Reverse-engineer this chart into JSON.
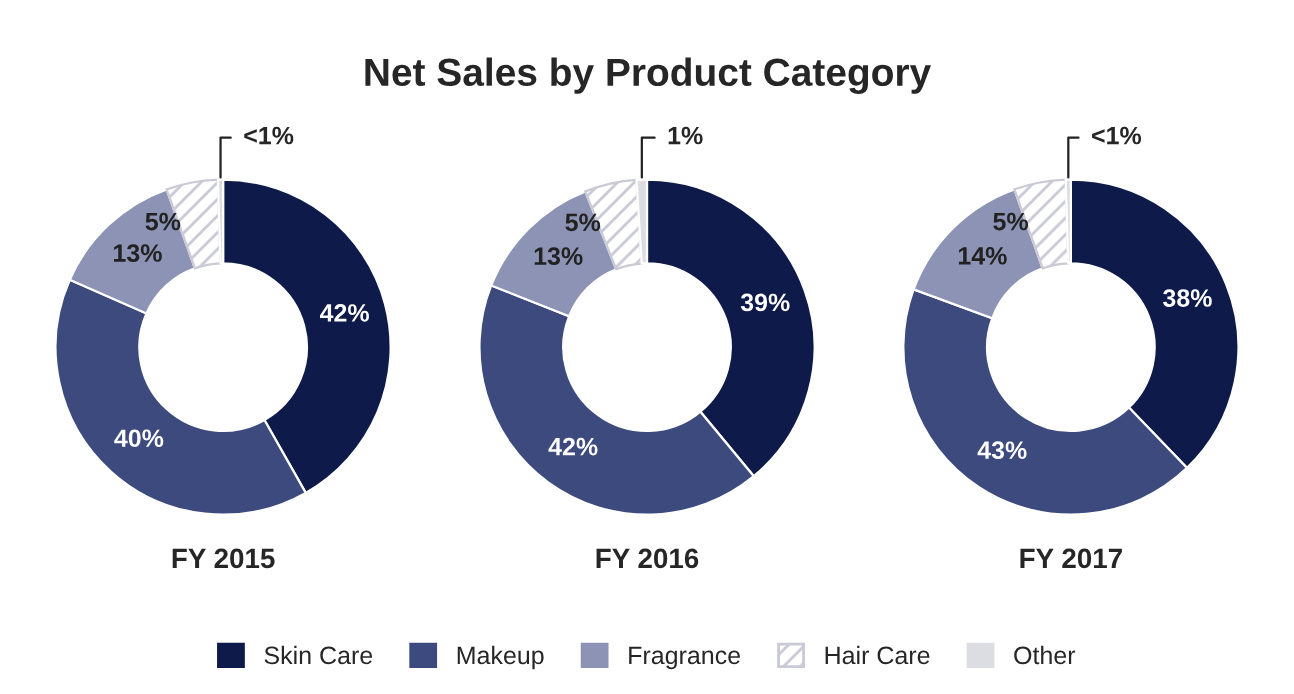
{
  "chart_data": [
    {
      "type": "donut",
      "xlabel": "FY 2015",
      "categories": [
        null,
        null,
        null,
        null,
        null
      ],
      "values": [
        42,
        40,
        13,
        5,
        0.5
      ],
      "value_labels": [
        "42%",
        "40%",
        "13%",
        "5%",
        "<1%"
      ],
      "colors": [
        "#0d1a4a",
        "#3d4a7e",
        "#8c93b4",
        "#c9cad6",
        "#dcdde3"
      ]
    },
    {
      "type": "donut",
      "title": "Net Sales by Product Category",
      "xlabel": "FY 2016",
      "legend": "bottom",
      "categories": [
        "Skin Care",
        "Makeup",
        "Fragrance",
        "Hair Care",
        "Other"
      ],
      "values": [
        39,
        42,
        13,
        5,
        1
      ],
      "value_labels": [
        "39%",
        "42%",
        "13%",
        "5%",
        "1%"
      ],
      "colors": [
        "#0d1a4a",
        "#3d4a7e",
        "#8c93b4",
        "#c9cad6",
        "#dcdde3"
      ]
    },
    {
      "type": "donut",
      "xlabel": "FY 2017",
      "categories": [
        null,
        null,
        null,
        null,
        null
      ],
      "values": [
        38,
        43,
        14,
        5,
        0.5
      ],
      "value_labels": [
        "38%",
        "43%",
        "14%",
        "5%",
        "<1%"
      ],
      "colors": [
        "#0d1a4a",
        "#3d4a7e",
        "#8c93b4",
        "#c9cad6",
        "#dcdde3"
      ]
    }
  ]
}
